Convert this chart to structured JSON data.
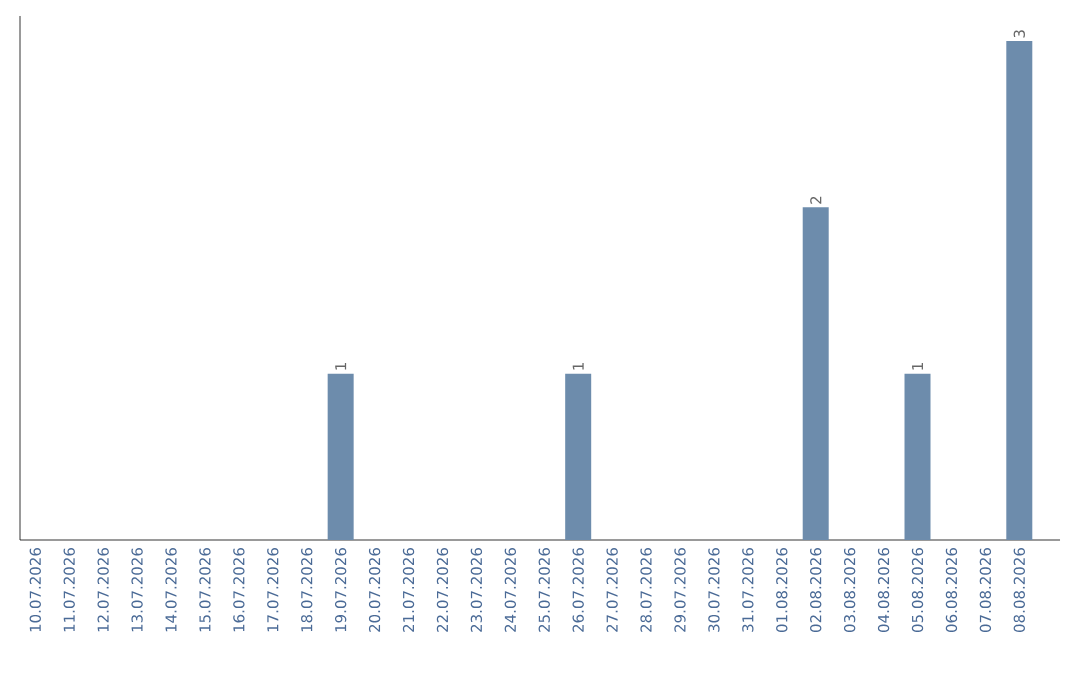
{
  "chart_data": {
    "type": "bar",
    "categories": [
      "10.07.2026",
      "11.07.2026",
      "12.07.2026",
      "13.07.2026",
      "14.07.2026",
      "15.07.2026",
      "16.07.2026",
      "17.07.2026",
      "18.07.2026",
      "19.07.2026",
      "20.07.2026",
      "21.07.2026",
      "22.07.2026",
      "23.07.2026",
      "24.07.2026",
      "25.07.2026",
      "26.07.2026",
      "27.07.2026",
      "28.07.2026",
      "29.07.2026",
      "30.07.2026",
      "31.07.2026",
      "01.08.2026",
      "02.08.2026",
      "03.08.2026",
      "04.08.2026",
      "05.08.2026",
      "06.08.2026",
      "07.08.2026",
      "08.08.2026"
    ],
    "values": [
      0,
      0,
      0,
      0,
      0,
      0,
      0,
      0,
      0,
      1,
      0,
      0,
      0,
      0,
      0,
      0,
      1,
      0,
      0,
      0,
      0,
      0,
      0,
      2,
      0,
      0,
      1,
      0,
      0,
      3
    ],
    "value_labels": [
      null,
      null,
      null,
      null,
      null,
      null,
      null,
      null,
      null,
      "1",
      null,
      null,
      null,
      null,
      null,
      null,
      "1",
      null,
      null,
      null,
      null,
      null,
      null,
      "2",
      null,
      null,
      "1",
      null,
      null,
      "3"
    ],
    "color": "#6d8cac",
    "ylim": [
      0,
      3.15
    ],
    "tick_labels": "x"
  }
}
